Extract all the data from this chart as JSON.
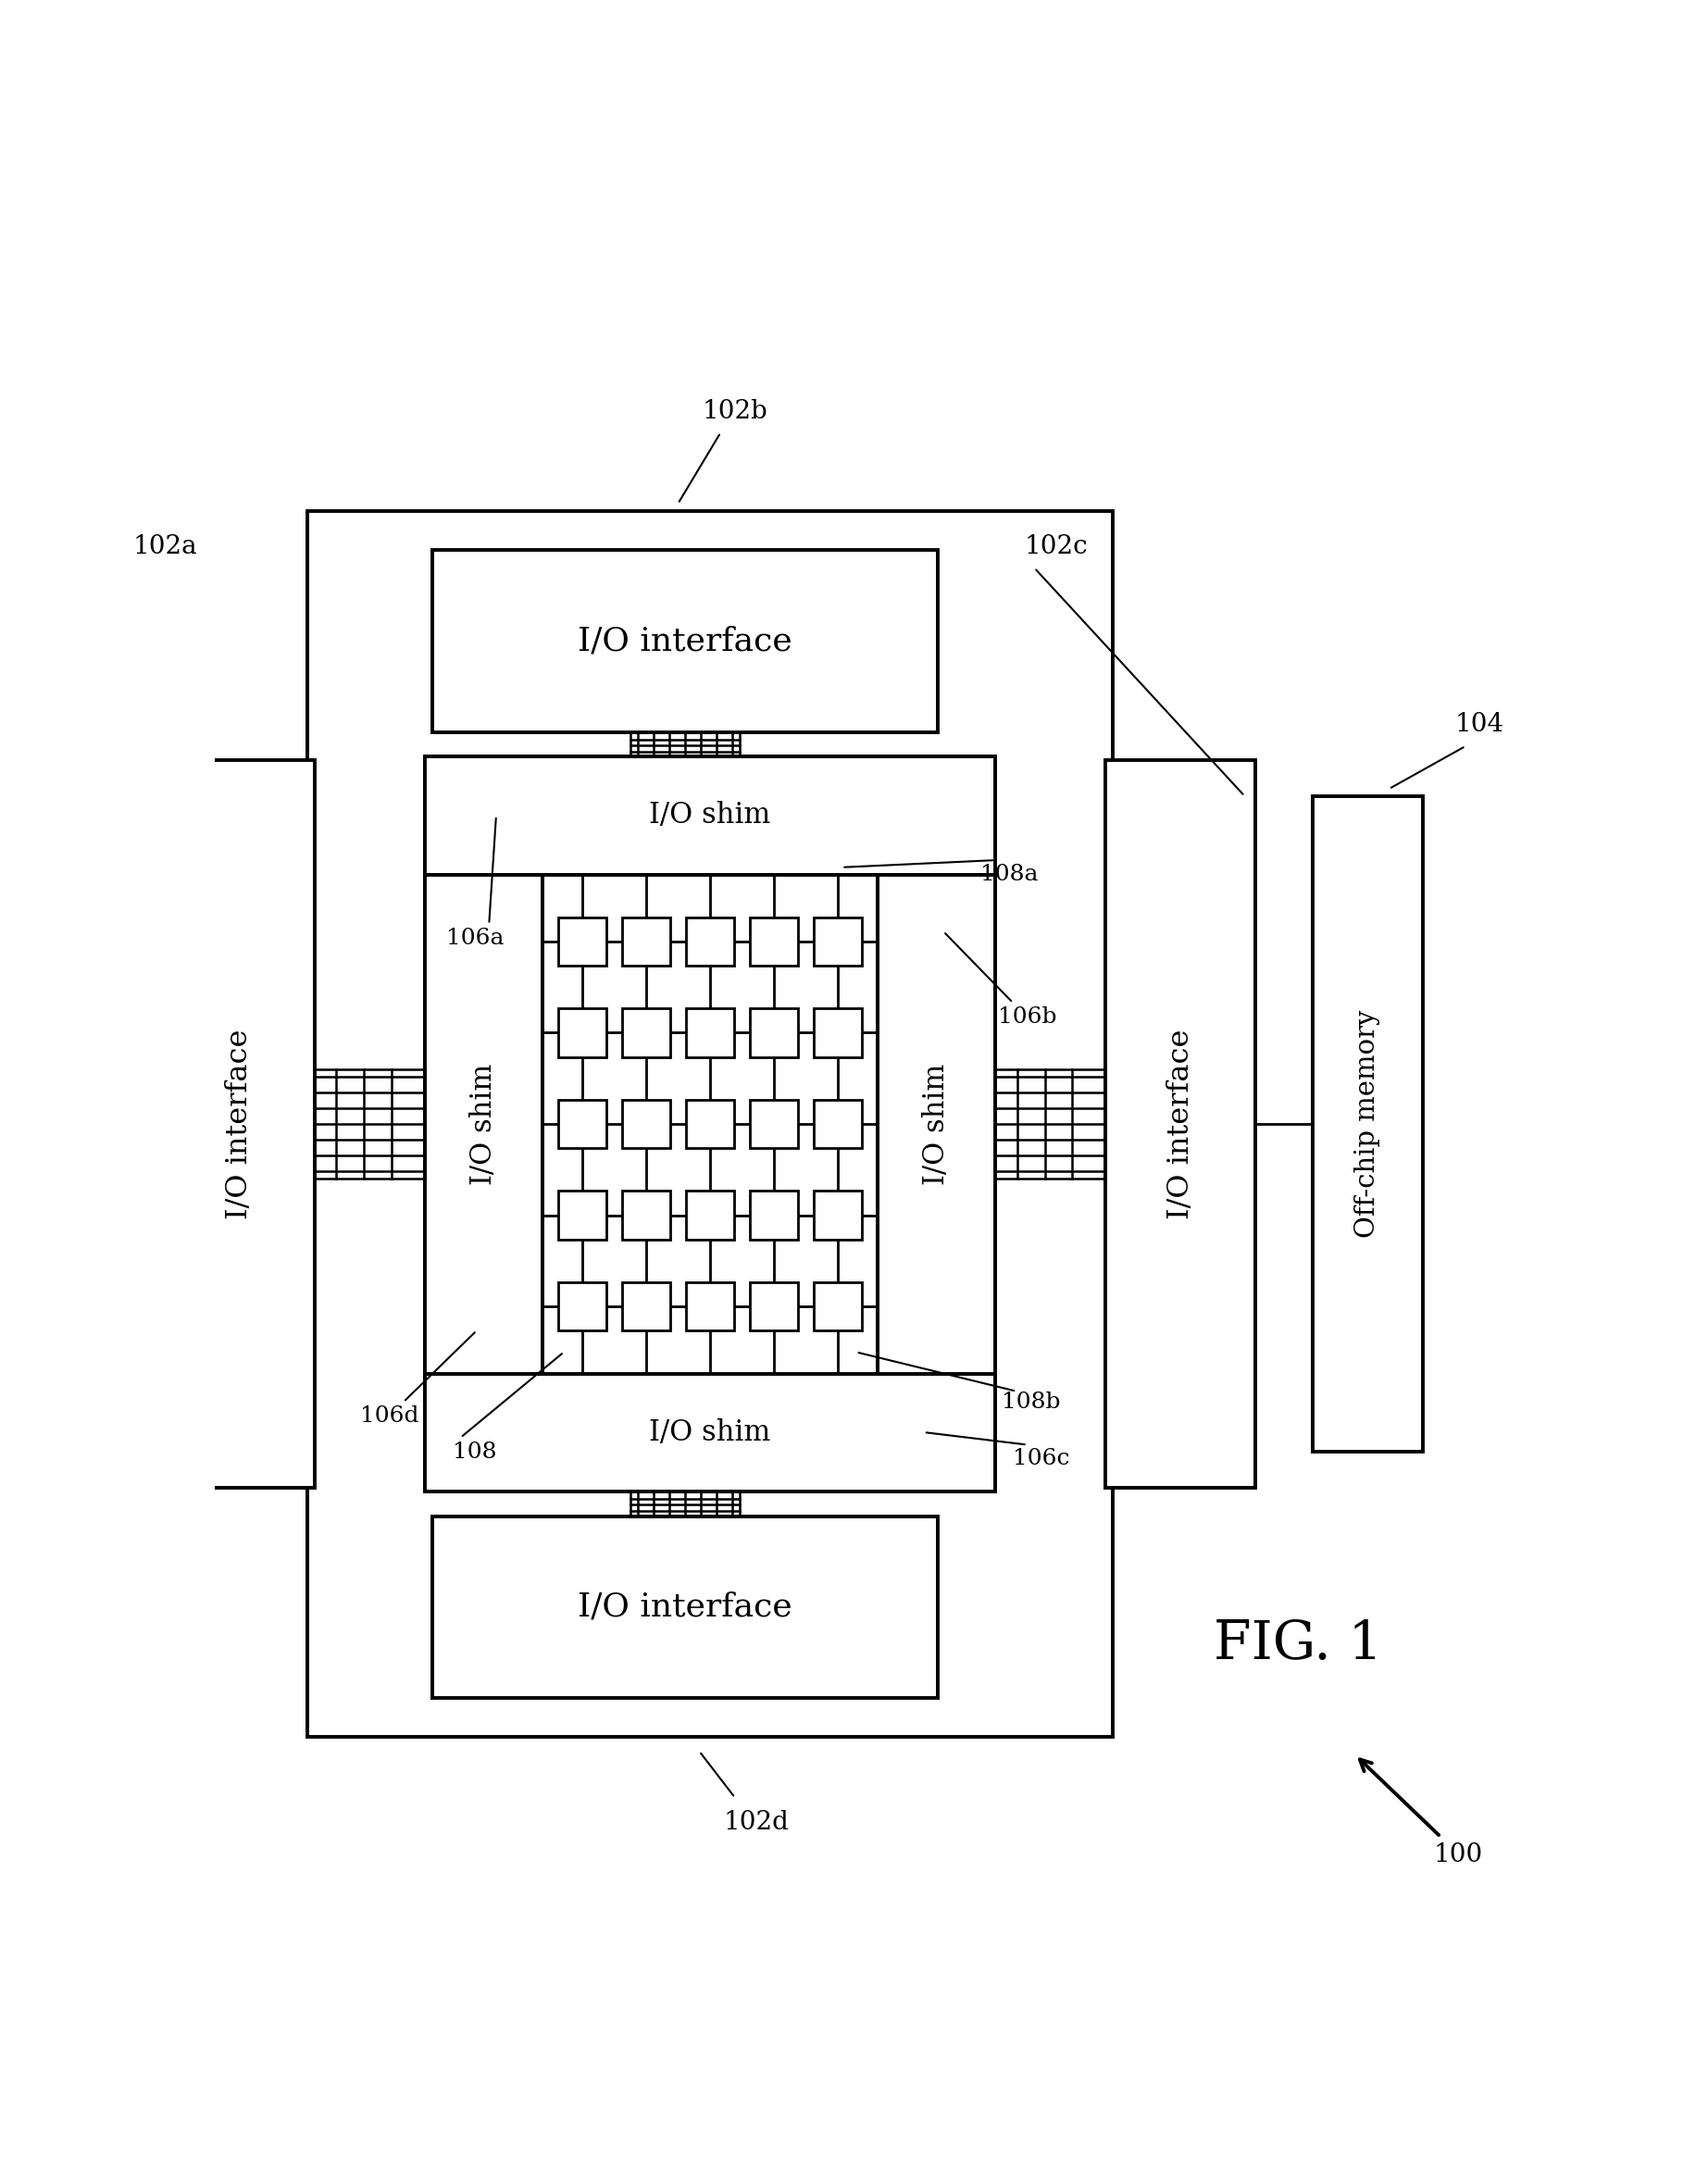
{
  "background_color": "#ffffff",
  "line_color": "#000000",
  "fig_label": "FIG. 1",
  "ref_100": "100",
  "ref_102a": "102a",
  "ref_102b": "102b",
  "ref_102c": "102c",
  "ref_102d": "102d",
  "ref_104": "104",
  "ref_106a": "106a",
  "ref_106b": "106b",
  "ref_106c": "106c",
  "ref_106d": "106d",
  "ref_108": "108",
  "ref_108a": "108a",
  "ref_108b": "108b",
  "lbl_io_interface": "I/O interface",
  "lbl_io_shim": "I/O shim",
  "lbl_memory": "Off-chip memory",
  "grid_rows": 5,
  "grid_cols": 5
}
